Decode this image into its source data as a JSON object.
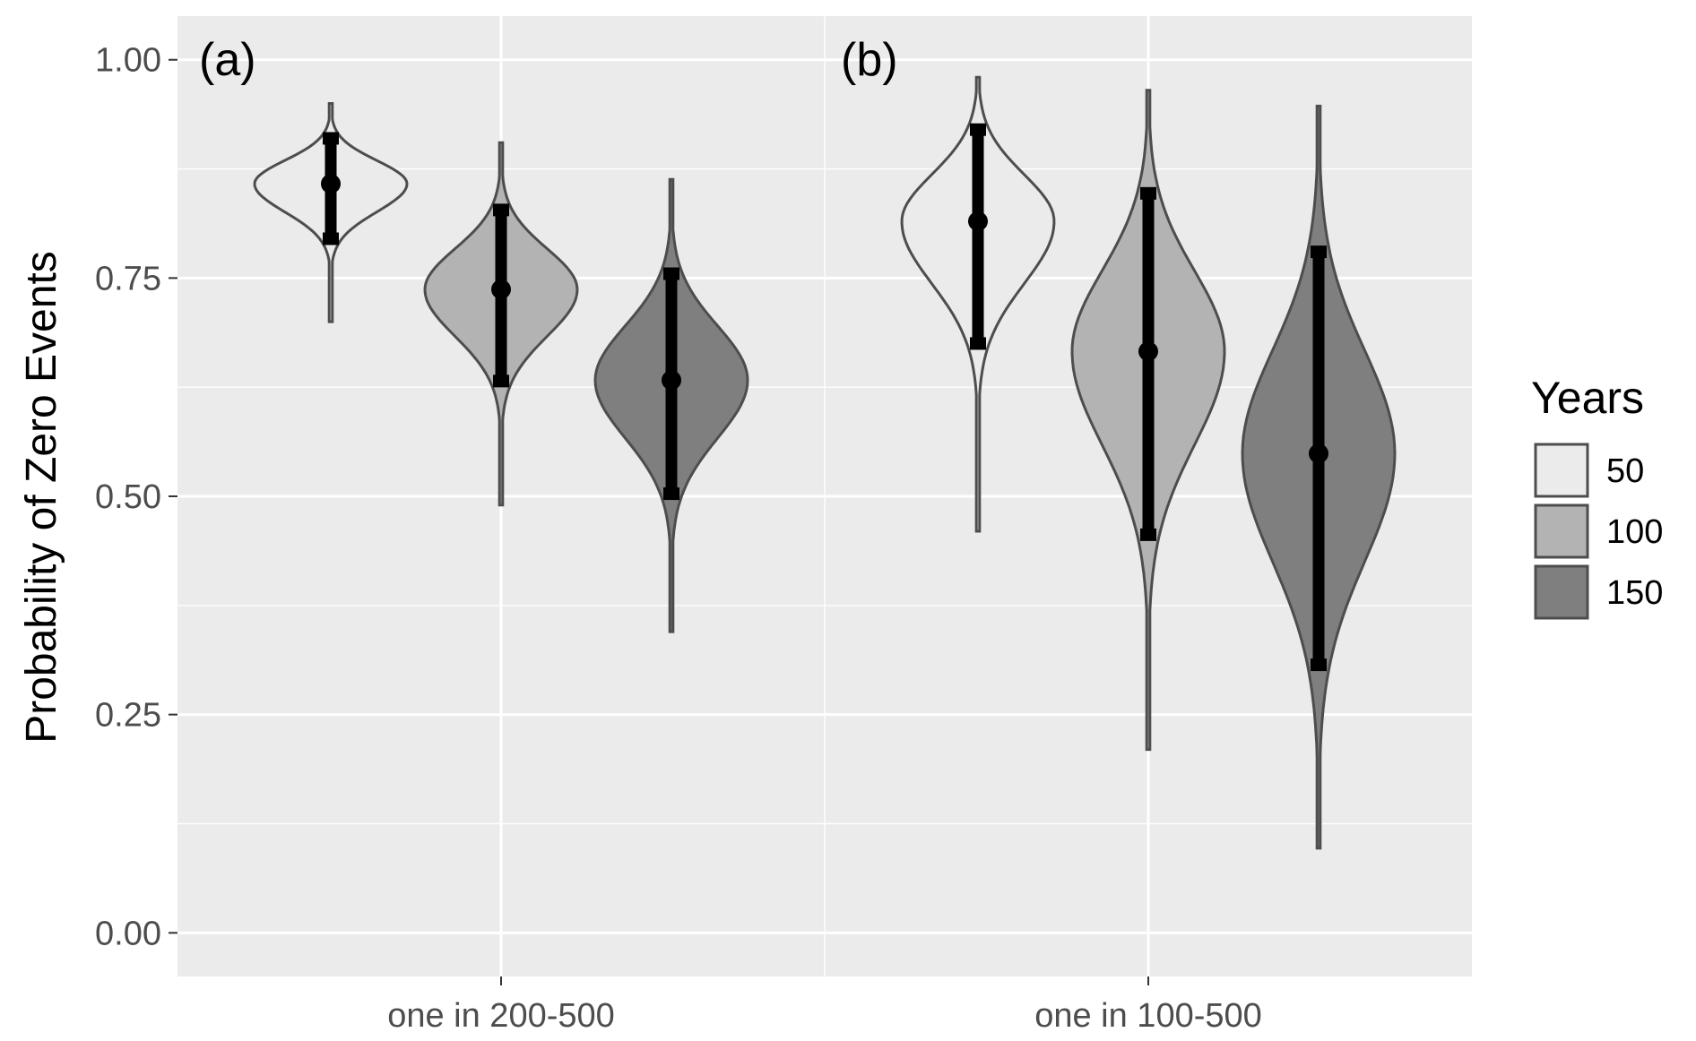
{
  "chart_data": {
    "type": "violin",
    "ylabel": "Probability of Zero Events",
    "xlabel": "",
    "ylim": [
      -0.05,
      1.05
    ],
    "yticks": [
      0.0,
      0.25,
      0.5,
      0.75,
      1.0
    ],
    "ytick_labels": [
      "0.00",
      "0.25",
      "0.50",
      "0.75",
      "1.00"
    ],
    "grid": true,
    "categories": [
      "one in 200-500",
      "one in 100-500"
    ],
    "panel_labels": [
      "(a)",
      "(b)"
    ],
    "legend": {
      "title": "Years",
      "placement": "right",
      "entries": [
        "50",
        "100",
        "150"
      ]
    },
    "series": [
      {
        "name": "50",
        "color": "#ebebeb",
        "violins": [
          {
            "category": "one in 200-500",
            "median": 0.858,
            "lower": 0.795,
            "upper": 0.91,
            "min": 0.7,
            "max": 0.95
          },
          {
            "category": "one in 100-500",
            "median": 0.815,
            "lower": 0.675,
            "upper": 0.92,
            "min": 0.46,
            "max": 0.98
          }
        ]
      },
      {
        "name": "100",
        "color": "#b3b3b3",
        "violins": [
          {
            "category": "one in 200-500",
            "median": 0.737,
            "lower": 0.632,
            "upper": 0.828,
            "min": 0.49,
            "max": 0.905
          },
          {
            "category": "one in 100-500",
            "median": 0.666,
            "lower": 0.456,
            "upper": 0.847,
            "min": 0.21,
            "max": 0.965
          }
        ]
      },
      {
        "name": "150",
        "color": "#7f7f7f",
        "violins": [
          {
            "category": "one in 200-500",
            "median": 0.633,
            "lower": 0.503,
            "upper": 0.755,
            "min": 0.345,
            "max": 0.863
          },
          {
            "category": "one in 100-500",
            "median": 0.549,
            "lower": 0.307,
            "upper": 0.78,
            "min": 0.097,
            "max": 0.947
          }
        ]
      }
    ]
  }
}
